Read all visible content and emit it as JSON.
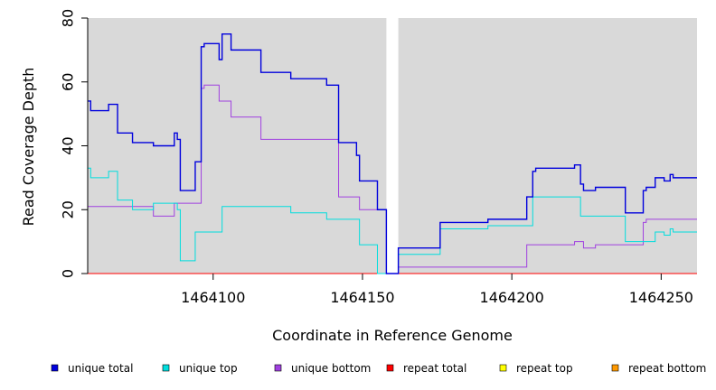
{
  "chart_data": {
    "type": "line",
    "title": "",
    "xlabel": "Coordinate in Reference Genome",
    "ylabel": "Read Coverage Depth",
    "xlim": [
      1464058,
      1464262
    ],
    "ylim": [
      0,
      80
    ],
    "x_ticks": [
      1464100,
      1464150,
      1464200,
      1464250
    ],
    "y_ticks": [
      0,
      20,
      40,
      60,
      80
    ],
    "background_color": "#d9d9d9",
    "gaps": [
      [
        1464158,
        1464162
      ]
    ],
    "legend_position": "bottom",
    "series": [
      {
        "name": "unique total",
        "color": "#0000dd",
        "points": [
          [
            1464058,
            54
          ],
          [
            1464059,
            51
          ],
          [
            1464065,
            53
          ],
          [
            1464068,
            44
          ],
          [
            1464073,
            41
          ],
          [
            1464080,
            40
          ],
          [
            1464087,
            44
          ],
          [
            1464088,
            42
          ],
          [
            1464089,
            26
          ],
          [
            1464094,
            35
          ],
          [
            1464096,
            71
          ],
          [
            1464097,
            72
          ],
          [
            1464102,
            67
          ],
          [
            1464103,
            75
          ],
          [
            1464106,
            70
          ],
          [
            1464116,
            63
          ],
          [
            1464126,
            61
          ],
          [
            1464138,
            59
          ],
          [
            1464142,
            41
          ],
          [
            1464148,
            37
          ],
          [
            1464149,
            29
          ],
          [
            1464155,
            20
          ],
          [
            1464158,
            0
          ],
          [
            1464162,
            8
          ],
          [
            1464176,
            16
          ],
          [
            1464192,
            17
          ],
          [
            1464205,
            24
          ],
          [
            1464207,
            32
          ],
          [
            1464208,
            33
          ],
          [
            1464221,
            34
          ],
          [
            1464223,
            28
          ],
          [
            1464224,
            26
          ],
          [
            1464228,
            27
          ],
          [
            1464238,
            19
          ],
          [
            1464244,
            26
          ],
          [
            1464245,
            27
          ],
          [
            1464248,
            30
          ],
          [
            1464251,
            29
          ],
          [
            1464253,
            31
          ],
          [
            1464254,
            30
          ],
          [
            1464262,
            30
          ]
        ]
      },
      {
        "name": "unique top",
        "color": "#00dddd",
        "points": [
          [
            1464058,
            33
          ],
          [
            1464059,
            30
          ],
          [
            1464065,
            32
          ],
          [
            1464068,
            23
          ],
          [
            1464073,
            20
          ],
          [
            1464080,
            22
          ],
          [
            1464088,
            20
          ],
          [
            1464089,
            4
          ],
          [
            1464094,
            13
          ],
          [
            1464103,
            21
          ],
          [
            1464126,
            19
          ],
          [
            1464138,
            17
          ],
          [
            1464149,
            9
          ],
          [
            1464155,
            0
          ],
          [
            1464158,
            0
          ],
          [
            1464162,
            6
          ],
          [
            1464176,
            14
          ],
          [
            1464192,
            15
          ],
          [
            1464207,
            24
          ],
          [
            1464223,
            18
          ],
          [
            1464238,
            10
          ],
          [
            1464248,
            13
          ],
          [
            1464251,
            12
          ],
          [
            1464253,
            14
          ],
          [
            1464254,
            13
          ],
          [
            1464262,
            13
          ]
        ]
      },
      {
        "name": "unique bottom",
        "color": "#a040e0",
        "points": [
          [
            1464058,
            21
          ],
          [
            1464073,
            21
          ],
          [
            1464080,
            18
          ],
          [
            1464087,
            22
          ],
          [
            1464096,
            58
          ],
          [
            1464097,
            59
          ],
          [
            1464102,
            54
          ],
          [
            1464106,
            49
          ],
          [
            1464116,
            42
          ],
          [
            1464142,
            24
          ],
          [
            1464149,
            20
          ],
          [
            1464158,
            0
          ],
          [
            1464162,
            2
          ],
          [
            1464205,
            9
          ],
          [
            1464221,
            10
          ],
          [
            1464224,
            8
          ],
          [
            1464228,
            9
          ],
          [
            1464244,
            16
          ],
          [
            1464245,
            17
          ],
          [
            1464262,
            17
          ]
        ]
      },
      {
        "name": "repeat total",
        "color": "#ff0000",
        "points": [
          [
            1464058,
            0
          ],
          [
            1464262,
            0
          ]
        ]
      },
      {
        "name": "repeat top",
        "color": "#ffff00",
        "points": [
          [
            1464058,
            0
          ],
          [
            1464262,
            0
          ]
        ]
      },
      {
        "name": "repeat bottom",
        "color": "#ff9900",
        "points": [
          [
            1464058,
            0
          ],
          [
            1464262,
            0
          ]
        ]
      }
    ]
  }
}
